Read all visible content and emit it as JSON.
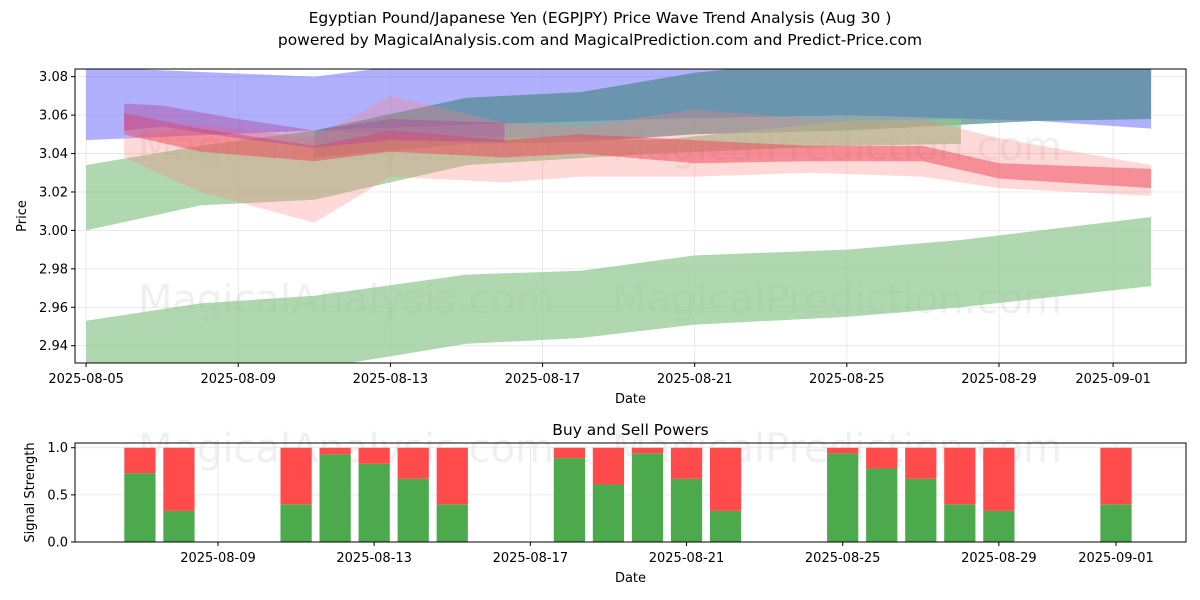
{
  "title_line1": "Egyptian Pound/Japanese Yen (EGPJPY) Price Wave Trend Analysis (Aug 30 )",
  "title_line2": "powered by MagicalAnalysis.com and MagicalPrediction.com and Predict-Price.com",
  "watermark_left": "MagicalAnalysis.com",
  "watermark_right": "MagicalPrediction.com",
  "chart_data": [
    {
      "type": "area",
      "title": "",
      "xlabel": "Date",
      "ylabel": "Price",
      "x_tick_labels": [
        "2025-08-05",
        "2025-08-09",
        "2025-08-13",
        "2025-08-17",
        "2025-08-21",
        "2025-08-25",
        "2025-08-29",
        "2025-09-01"
      ],
      "y_tick_labels": [
        "2.94",
        "2.96",
        "2.98",
        "3.00",
        "3.02",
        "3.04",
        "3.06",
        "3.08"
      ],
      "xlim": [
        "2025-08-04T17:00",
        "2025-09-02T22:00"
      ],
      "ylim": [
        2.931,
        3.084
      ],
      "grid": true,
      "bands": [
        {
          "color": "#6f6ffb",
          "x": [
            "2025-08-05",
            "2025-08-11",
            "2025-08-15",
            "2025-08-20",
            "2025-08-25",
            "2025-08-30",
            "2025-09-02"
          ],
          "upper": [
            3.085,
            3.08,
            3.09,
            3.09,
            3.09,
            3.09,
            3.085
          ],
          "lower": [
            3.047,
            3.052,
            3.055,
            3.058,
            3.06,
            3.057,
            3.053
          ]
        },
        {
          "color": "#4f8a8b",
          "x": [
            "2025-08-11",
            "2025-08-15",
            "2025-08-18",
            "2025-08-21",
            "2025-08-25",
            "2025-08-30",
            "2025-09-02"
          ],
          "upper": [
            3.052,
            3.069,
            3.072,
            3.082,
            3.09,
            3.09,
            3.085
          ],
          "lower": [
            3.038,
            3.045,
            3.046,
            3.05,
            3.052,
            3.057,
            3.058
          ]
        },
        {
          "color": "#8fc78f",
          "x": [
            "2025-08-05",
            "2025-08-08",
            "2025-08-11",
            "2025-08-15",
            "2025-08-20",
            "2025-08-25",
            "2025-08-28"
          ],
          "upper": [
            3.034,
            3.044,
            3.052,
            3.049,
            3.047,
            3.057,
            3.058
          ],
          "lower": [
            3.0,
            3.013,
            3.016,
            3.034,
            3.04,
            3.044,
            3.045
          ]
        },
        {
          "color": "#8fc78f",
          "x": [
            "2025-08-05",
            "2025-08-08",
            "2025-08-11",
            "2025-08-15",
            "2025-08-18",
            "2025-08-21",
            "2025-08-25",
            "2025-08-28",
            "2025-09-02"
          ],
          "upper": [
            2.953,
            2.962,
            2.966,
            2.977,
            2.979,
            2.987,
            2.99,
            2.995,
            3.007
          ],
          "lower": [
            2.93,
            2.925,
            2.928,
            2.941,
            2.944,
            2.951,
            2.955,
            2.96,
            2.971
          ]
        },
        {
          "color": "#ff7f7f",
          "x": [
            "2025-08-06",
            "2025-08-08",
            "2025-08-11",
            "2025-08-13",
            "2025-08-16",
            "2025-08-18",
            "2025-08-21",
            "2025-08-24",
            "2025-08-27",
            "2025-08-29",
            "2025-09-02"
          ],
          "upper": [
            3.048,
            3.055,
            3.048,
            3.07,
            3.056,
            3.054,
            3.063,
            3.058,
            3.058,
            3.048,
            3.034
          ],
          "lower": [
            3.038,
            3.02,
            3.004,
            3.028,
            3.025,
            3.028,
            3.028,
            3.03,
            3.028,
            3.022,
            3.018
          ]
        },
        {
          "color": "#ee4455",
          "x": [
            "2025-08-06",
            "2025-08-08",
            "2025-08-11",
            "2025-08-13",
            "2025-08-16",
            "2025-08-18",
            "2025-08-21",
            "2025-08-24",
            "2025-08-27",
            "2025-08-29",
            "2025-09-02"
          ],
          "upper": [
            3.061,
            3.053,
            3.044,
            3.052,
            3.047,
            3.05,
            3.047,
            3.044,
            3.044,
            3.035,
            3.032
          ],
          "lower": [
            3.05,
            3.041,
            3.036,
            3.041,
            3.038,
            3.04,
            3.035,
            3.036,
            3.036,
            3.027,
            3.022
          ]
        },
        {
          "color": "#b04a9c",
          "x": [
            "2025-08-06",
            "2025-08-07",
            "2025-08-09",
            "2025-08-11",
            "2025-08-13",
            "2025-08-16"
          ],
          "upper": [
            3.066,
            3.065,
            3.058,
            3.052,
            3.058,
            3.056
          ],
          "lower": [
            3.052,
            3.054,
            3.048,
            3.043,
            3.047,
            3.046
          ]
        }
      ]
    },
    {
      "type": "bar",
      "title": "Buy and Sell Powers",
      "xlabel": "Date",
      "ylabel": "Signal Strength",
      "x_tick_labels": [
        "2025-08-09",
        "2025-08-13",
        "2025-08-17",
        "2025-08-21",
        "2025-08-25",
        "2025-08-29",
        "2025-09-01"
      ],
      "y_tick_labels": [
        "0.0",
        "0.5",
        "1.0"
      ],
      "ylim": [
        0,
        1.05
      ],
      "grid": true,
      "series": [
        {
          "name": "Buy",
          "color": "#4caa4c"
        },
        {
          "name": "Sell",
          "color": "#ff4b4b"
        }
      ],
      "bars": [
        {
          "date": "2025-08-07",
          "buy": 0.73
        },
        {
          "date": "2025-08-08",
          "buy": 0.33
        },
        {
          "date": "2025-08-11",
          "buy": 0.4
        },
        {
          "date": "2025-08-12",
          "buy": 0.93
        },
        {
          "date": "2025-08-13",
          "buy": 0.83
        },
        {
          "date": "2025-08-14",
          "buy": 0.67
        },
        {
          "date": "2025-08-15",
          "buy": 0.4
        },
        {
          "date": "2025-08-18",
          "buy": 0.89
        },
        {
          "date": "2025-08-19",
          "buy": 0.61
        },
        {
          "date": "2025-08-20",
          "buy": 0.94
        },
        {
          "date": "2025-08-21",
          "buy": 0.67
        },
        {
          "date": "2025-08-22",
          "buy": 0.33
        },
        {
          "date": "2025-08-25",
          "buy": 0.94
        },
        {
          "date": "2025-08-26",
          "buy": 0.78
        },
        {
          "date": "2025-08-27",
          "buy": 0.67
        },
        {
          "date": "2025-08-28",
          "buy": 0.4
        },
        {
          "date": "2025-08-29",
          "buy": 0.33
        },
        {
          "date": "2025-09-01",
          "buy": 0.4
        }
      ]
    }
  ]
}
